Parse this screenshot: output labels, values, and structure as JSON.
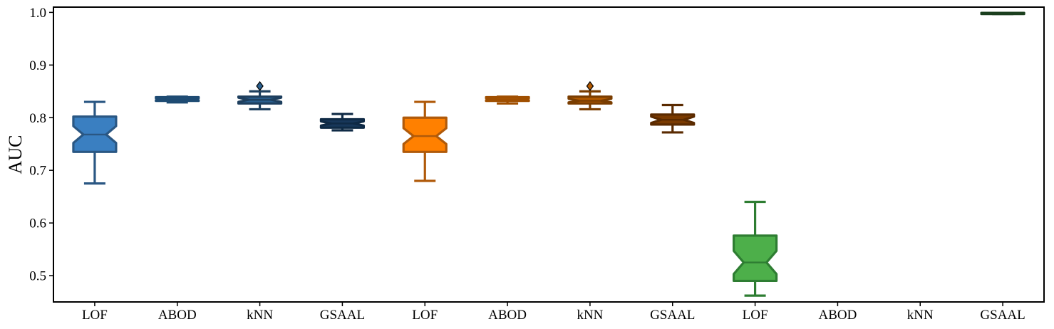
{
  "chart_data": {
    "type": "boxplot",
    "notched": true,
    "title": "",
    "xlabel": "",
    "ylabel": "AUC",
    "ylim": [
      0.45,
      1.01
    ],
    "yticks": [
      0.5,
      0.6,
      0.7,
      0.8,
      0.9,
      1.0
    ],
    "ytick_labels": [
      "0.5",
      "0.6",
      "0.7",
      "0.8",
      "0.9",
      "1.0"
    ],
    "grid": false,
    "categories": [
      "LOF",
      "ABOD",
      "kNN",
      "GSAAL",
      "LOF",
      "ABOD",
      "kNN",
      "GSAAL",
      "LOF",
      "ABOD",
      "kNN",
      "GSAAL"
    ],
    "boxes": [
      {
        "category": "LOF",
        "whisker_low": 0.675,
        "q1": 0.735,
        "median": 0.768,
        "q3": 0.802,
        "whisker_high": 0.83,
        "notch_low": 0.752,
        "notch_high": 0.784,
        "outliers": [],
        "fill": "#3a7fc1",
        "edge": "#2a5783"
      },
      {
        "category": "ABOD",
        "whisker_low": 0.829,
        "q1": 0.832,
        "median": 0.835,
        "q3": 0.839,
        "whisker_high": 0.84,
        "notch_low": 0.833,
        "notch_high": 0.837,
        "outliers": [],
        "fill": "#2a5f8e",
        "edge": "#1e4b73"
      },
      {
        "category": "kNN",
        "whisker_low": 0.816,
        "q1": 0.827,
        "median": 0.834,
        "q3": 0.84,
        "whisker_high": 0.85,
        "notch_low": 0.83,
        "notch_high": 0.838,
        "outliers": [
          0.86
        ],
        "fill": "#2a5f8e",
        "edge": "#1e3f5e"
      },
      {
        "category": "GSAAL",
        "whisker_low": 0.776,
        "q1": 0.781,
        "median": 0.789,
        "q3": 0.797,
        "whisker_high": 0.807,
        "notch_low": 0.785,
        "notch_high": 0.793,
        "outliers": [],
        "fill": "#17375a",
        "edge": "#0f2a45"
      },
      {
        "category": "LOF",
        "whisker_low": 0.68,
        "q1": 0.735,
        "median": 0.765,
        "q3": 0.8,
        "whisker_high": 0.83,
        "notch_low": 0.75,
        "notch_high": 0.78,
        "outliers": [],
        "fill": "#ff8000",
        "edge": "#b05a0a"
      },
      {
        "category": "ABOD",
        "whisker_low": 0.827,
        "q1": 0.832,
        "median": 0.835,
        "q3": 0.839,
        "whisker_high": 0.84,
        "notch_low": 0.833,
        "notch_high": 0.837,
        "outliers": [],
        "fill": "#cc6600",
        "edge": "#a04f00"
      },
      {
        "category": "kNN",
        "whisker_low": 0.816,
        "q1": 0.827,
        "median": 0.832,
        "q3": 0.84,
        "whisker_high": 0.85,
        "notch_low": 0.829,
        "notch_high": 0.836,
        "outliers": [
          0.86
        ],
        "fill": "#b35900",
        "edge": "#7a3d00"
      },
      {
        "category": "GSAAL",
        "whisker_low": 0.772,
        "q1": 0.787,
        "median": 0.796,
        "q3": 0.806,
        "whisker_high": 0.824,
        "notch_low": 0.79,
        "notch_high": 0.802,
        "outliers": [],
        "fill": "#7a3a00",
        "edge": "#5a2a00"
      },
      {
        "category": "LOF",
        "whisker_low": 0.462,
        "q1": 0.49,
        "median": 0.525,
        "q3": 0.576,
        "whisker_high": 0.64,
        "notch_low": 0.503,
        "notch_high": 0.547,
        "outliers": [],
        "fill": "#4daf4a",
        "edge": "#2e7d32"
      },
      {
        "category": "ABOD",
        "empty": true
      },
      {
        "category": "kNN",
        "empty": true
      },
      {
        "category": "GSAAL",
        "whisker_low": 0.997,
        "q1": 0.997,
        "median": 0.998,
        "q3": 0.999,
        "whisker_high": 0.999,
        "notch_low": 0.997,
        "notch_high": 0.999,
        "outliers": [],
        "fill": "#1e5a24",
        "edge": "#1b3f1e"
      }
    ]
  }
}
